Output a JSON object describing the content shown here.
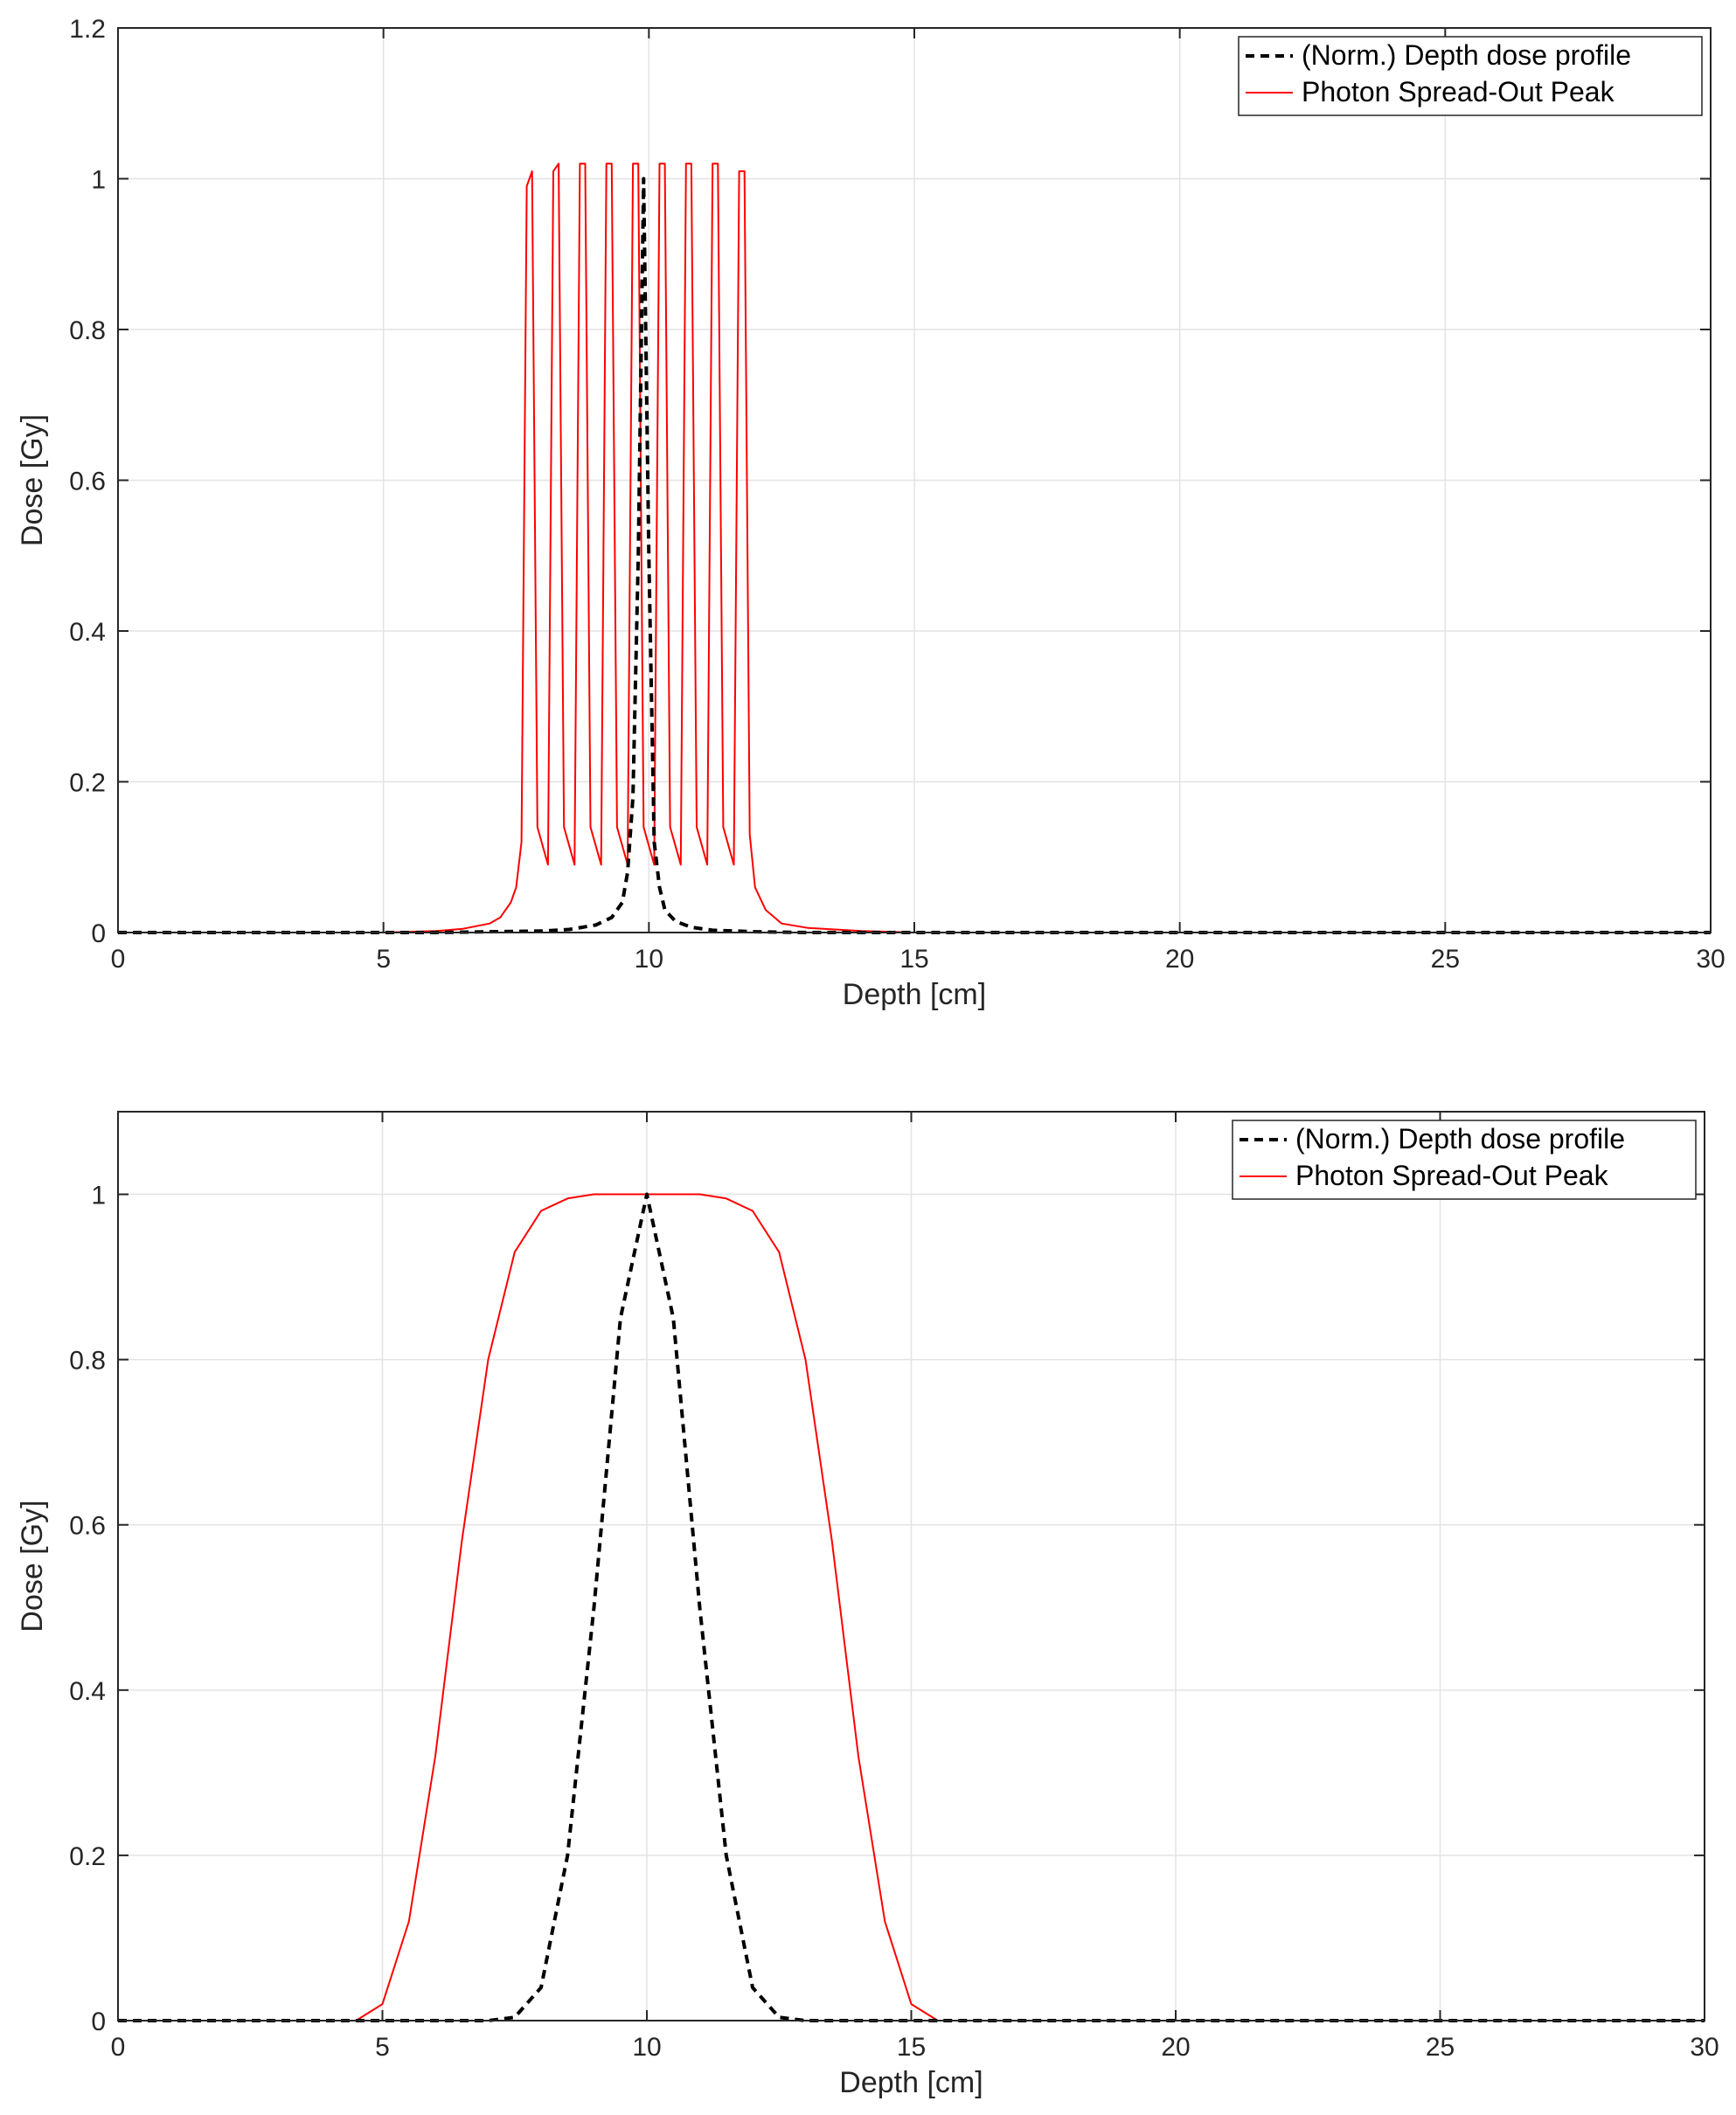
{
  "colors": {
    "red_series": "#ff0000",
    "black_series": "#000000",
    "grid": "#e3e3e3",
    "axis": "#262626"
  },
  "chart_data": [
    {
      "type": "line",
      "xlabel": "Depth [cm]",
      "ylabel": "Dose [Gy]",
      "xlim": [
        0,
        30
      ],
      "ylim": [
        0,
        1.2
      ],
      "xticks": [
        "0",
        "5",
        "10",
        "15",
        "20",
        "25",
        "30"
      ],
      "yticks": [
        "0",
        "0.2",
        "0.4",
        "0.6",
        "0.8",
        "1",
        "1.2"
      ],
      "ytick_values": [
        0,
        0.2,
        0.4,
        0.6,
        0.8,
        1,
        1.2
      ],
      "grid": true,
      "legend_position": "top-right",
      "series": [
        {
          "name": "(Norm.) Depth dose profile",
          "style": "dashed",
          "color": "#000000",
          "x": [
            0,
            6,
            7,
            8,
            8.5,
            9,
            9.3,
            9.5,
            9.6,
            9.7,
            9.8,
            9.9,
            10.0,
            10.1,
            10.2,
            10.3,
            10.5,
            10.8,
            11.2,
            12,
            13,
            30
          ],
          "y": [
            0,
            0,
            0.001,
            0.002,
            0.004,
            0.01,
            0.02,
            0.04,
            0.08,
            0.18,
            0.5,
            1.0,
            0.5,
            0.12,
            0.06,
            0.03,
            0.015,
            0.007,
            0.003,
            0.001,
            0,
            0
          ]
        },
        {
          "name": "Photon Spread-Out Peak",
          "style": "solid",
          "color": "#ff0000",
          "x": [
            0,
            5,
            6,
            6.5,
            7,
            7.2,
            7.4,
            7.5,
            7.6,
            7.7,
            7.8,
            7.9,
            8.1,
            8.2,
            8.3,
            8.4,
            8.6,
            8.7,
            8.8,
            8.9,
            9.1,
            9.2,
            9.3,
            9.4,
            9.6,
            9.7,
            9.8,
            9.9,
            10.1,
            10.2,
            10.3,
            10.4,
            10.6,
            10.7,
            10.8,
            10.9,
            11.1,
            11.2,
            11.3,
            11.4,
            11.6,
            11.7,
            11.8,
            11.9,
            12.0,
            12.2,
            12.5,
            13,
            14,
            15,
            30
          ],
          "y": [
            0,
            0,
            0.002,
            0.005,
            0.012,
            0.02,
            0.04,
            0.06,
            0.12,
            0.99,
            1.01,
            0.14,
            0.09,
            1.01,
            1.02,
            0.14,
            0.09,
            1.02,
            1.02,
            0.14,
            0.09,
            1.02,
            1.02,
            0.14,
            0.09,
            1.02,
            1.02,
            0.14,
            0.09,
            1.02,
            1.02,
            0.14,
            0.09,
            1.02,
            1.02,
            0.14,
            0.09,
            1.02,
            1.02,
            0.14,
            0.09,
            1.01,
            1.01,
            0.13,
            0.06,
            0.03,
            0.012,
            0.006,
            0.002,
            0,
            0
          ]
        }
      ]
    },
    {
      "type": "line",
      "xlabel": "Depth [cm]",
      "ylabel": "Dose [Gy]",
      "xlim": [
        0,
        30
      ],
      "ylim": [
        0,
        1.1
      ],
      "xticks": [
        "0",
        "5",
        "10",
        "15",
        "20",
        "25",
        "30"
      ],
      "yticks": [
        "0",
        "0.2",
        "0.4",
        "0.6",
        "0.8",
        "1"
      ],
      "ytick_values": [
        0,
        0.2,
        0.4,
        0.6,
        0.8,
        1
      ],
      "grid": true,
      "legend_position": "top-right",
      "series": [
        {
          "name": "(Norm.) Depth dose profile",
          "style": "dashed",
          "color": "#000000",
          "x": [
            0,
            7,
            7.5,
            8,
            8.5,
            9,
            9.5,
            10,
            10.5,
            11,
            11.5,
            12,
            12.5,
            13,
            30
          ],
          "y": [
            0,
            0,
            0.004,
            0.04,
            0.2,
            0.5,
            0.85,
            1.0,
            0.85,
            0.5,
            0.2,
            0.04,
            0.004,
            0,
            0
          ]
        },
        {
          "name": "Photon Spread-Out Peak",
          "style": "solid",
          "color": "#ff0000",
          "x": [
            0,
            4.5,
            5,
            5.5,
            6,
            6.5,
            7,
            7.5,
            8,
            8.5,
            9,
            10,
            11,
            11.5,
            12,
            12.5,
            13,
            13.5,
            14,
            14.5,
            15,
            15.5,
            30
          ],
          "y": [
            0,
            0,
            0.02,
            0.12,
            0.32,
            0.58,
            0.8,
            0.93,
            0.98,
            0.995,
            1.0,
            1.0,
            1.0,
            0.995,
            0.98,
            0.93,
            0.8,
            0.58,
            0.32,
            0.12,
            0.02,
            0,
            0
          ]
        }
      ]
    }
  ]
}
